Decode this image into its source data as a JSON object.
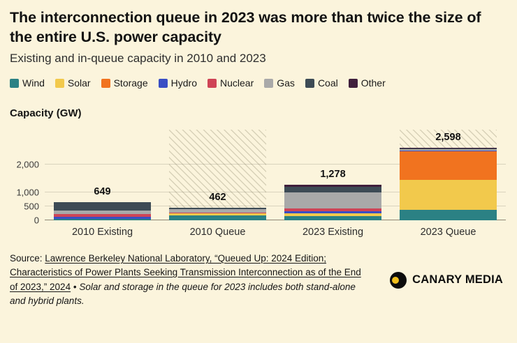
{
  "header": {
    "title": "The interconnection queue in 2023 was more than twice the size of the entire U.S. power capacity",
    "subtitle": "Existing and in-queue capacity in 2010 and 2023"
  },
  "chart_data": {
    "type": "bar",
    "stacked": true,
    "title": "The interconnection queue in 2023 was more than twice the size of the entire U.S. power capacity",
    "subtitle": "Existing and in-queue capacity in 2010 and 2023",
    "ylabel": "Capacity (GW)",
    "xlabel": "",
    "categories": [
      "2010 Existing",
      "2010 Queue",
      "2023 Existing",
      "2023 Queue"
    ],
    "hatched_categories": [
      "2010 Queue",
      "2023 Queue"
    ],
    "totals": [
      649,
      462,
      1278,
      2598
    ],
    "total_labels": [
      "649",
      "462",
      "1,278",
      "2,598"
    ],
    "series": [
      {
        "name": "Wind",
        "color": "#2b8184",
        "values": [
          40,
          184,
          150,
          366
        ]
      },
      {
        "name": "Solar",
        "color": "#f2c94c",
        "values": [
          2,
          61,
          90,
          1086
        ]
      },
      {
        "name": "Storage",
        "color": "#f1731f",
        "values": [
          1,
          4,
          17,
          1028
        ]
      },
      {
        "name": "Hydro",
        "color": "#3a4ec4",
        "values": [
          78,
          6,
          80,
          10
        ]
      },
      {
        "name": "Nuclear",
        "color": "#cf4456",
        "values": [
          101,
          22,
          96,
          8
        ]
      },
      {
        "name": "Gas",
        "color": "#a9a9a9",
        "values": [
          137,
          135,
          569,
          60
        ]
      },
      {
        "name": "Coal",
        "color": "#3d4b55",
        "values": [
          283,
          30,
          194,
          26
        ]
      },
      {
        "name": "Other",
        "color": "#401f3c",
        "values": [
          7,
          20,
          82,
          14
        ]
      }
    ],
    "yticks": [
      0,
      500,
      1000,
      2000
    ],
    "ytick_labels": [
      "0",
      "500",
      "1,000",
      "2,000"
    ],
    "ylim": [
      0,
      3250
    ],
    "grid": true,
    "legend_position": "top"
  },
  "source": {
    "prefix": "Source: ",
    "link": "Lawrence Berkeley National Laboratory, “Queued Up: 2024 Edition; Characteristics of Power Plants Seeking Transmission Interconnection as of the End of 2023,” 2024",
    "separator": " • ",
    "note": "Solar and storage in the queue for 2023 includes both stand-alone and hybrid plants."
  },
  "logo": {
    "text": "CANARY MEDIA"
  }
}
